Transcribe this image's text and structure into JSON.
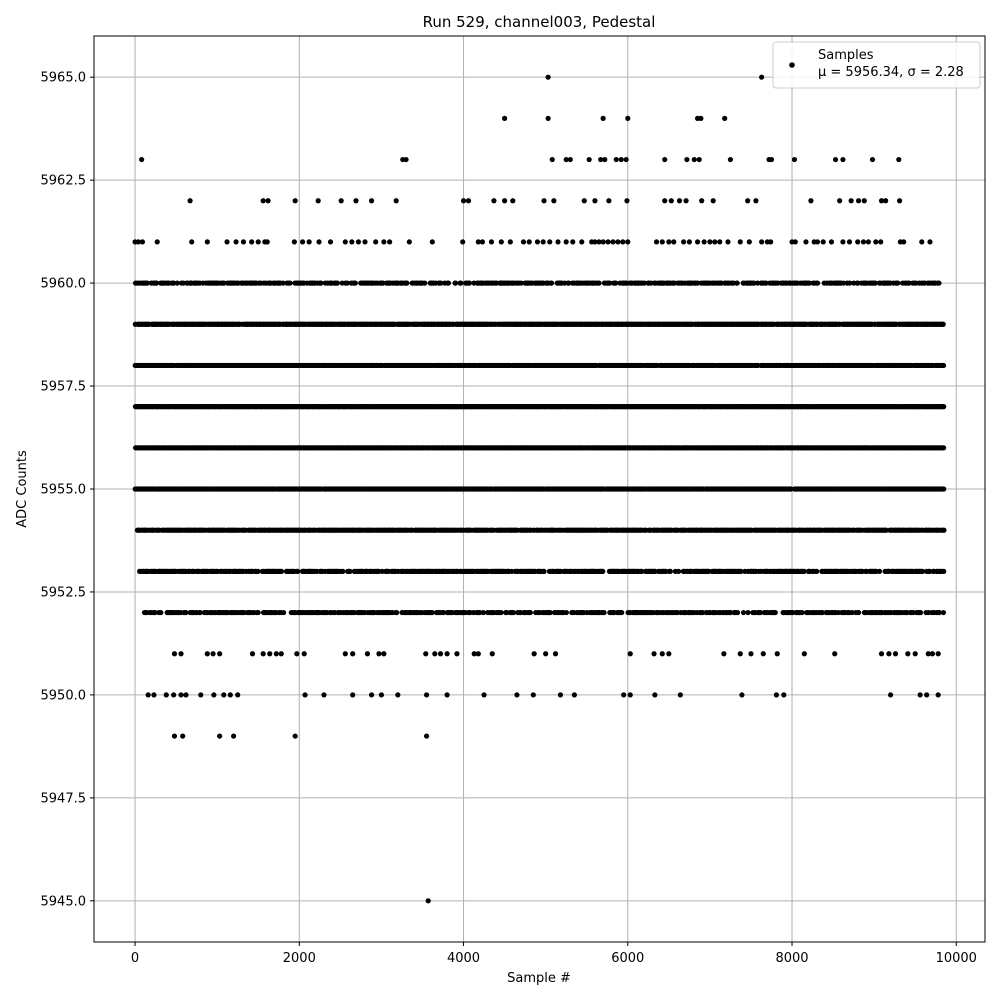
{
  "chart_data": {
    "type": "scatter",
    "title": "Run 529, channel003, Pedestal",
    "xlabel": "Sample #",
    "ylabel": "ADC Counts",
    "xlim": [
      -500,
      10350
    ],
    "ylim": [
      5944.0,
      5966.0
    ],
    "x_ticks": [
      0,
      2000,
      4000,
      6000,
      8000,
      10000
    ],
    "x_tick_labels": [
      "0",
      "2000",
      "4000",
      "6000",
      "8000",
      "10000"
    ],
    "y_ticks": [
      5945.0,
      5947.5,
      5950.0,
      5952.5,
      5955.0,
      5957.5,
      5960.0,
      5962.5,
      5965.0
    ],
    "y_tick_labels": [
      "5945.0",
      "5947.5",
      "5950.0",
      "5952.5",
      "5955.0",
      "5957.5",
      "5960.0",
      "5962.5",
      "5965.0"
    ],
    "grid": true,
    "marker_color": "#000000",
    "legend": {
      "position": "top-right",
      "label": "Samples",
      "stats": "μ = 5956.34, σ = 2.28"
    },
    "series": [
      {
        "name": "Samples",
        "points": [
          {
            "level": 5945,
            "x": [
              3570
            ]
          },
          {
            "level": 5949,
            "x": [
              480,
              580,
              1030,
              1200,
              1950,
              3550
            ]
          },
          {
            "level": 5950,
            "x": [
              160,
              230,
              380,
              470,
              560,
              620,
              800,
              960,
              1080,
              1160,
              1250,
              2070,
              2300,
              2650,
              2880,
              3000,
              3200,
              3550,
              3800,
              4250,
              4650,
              4850,
              5180,
              5350,
              5950,
              6030,
              6330,
              6640,
              7390,
              7810,
              7900,
              9200,
              9560,
              9640,
              9780
            ]
          },
          {
            "level": 5951,
            "x": [
              480,
              560,
              880,
              950,
              1030,
              1430,
              1560,
              1640,
              1720,
              1780,
              1970,
              2060,
              2560,
              2650,
              2830,
              2970,
              3030,
              3540,
              3650,
              3720,
              3800,
              3920,
              4130,
              4180,
              4350,
              4860,
              5000,
              5120,
              6030,
              6320,
              6420,
              6500,
              7170,
              7370,
              7500,
              7650,
              7820,
              8150,
              8520,
              9090,
              9180,
              9260,
              9410,
              9500,
              9660,
              9710,
              9780
            ]
          }
        ],
        "dense_levels": [
          {
            "level": 5952,
            "density": 0.62,
            "from": 100,
            "to": 9850
          },
          {
            "level": 5953,
            "density": 0.72,
            "from": 40,
            "to": 9850
          },
          {
            "level": 5954,
            "density": 0.92,
            "from": 20,
            "to": 9850
          },
          {
            "level": 5955,
            "density": 0.97,
            "from": 0,
            "to": 9850
          },
          {
            "level": 5956,
            "density": 1.0,
            "from": 0,
            "to": 9850
          },
          {
            "level": 5957,
            "density": 1.0,
            "from": 0,
            "to": 9850
          },
          {
            "level": 5958,
            "density": 0.97,
            "from": 0,
            "to": 9850
          },
          {
            "level": 5959,
            "density": 0.95,
            "from": 0,
            "to": 9850
          },
          {
            "level": 5960,
            "density": 0.6,
            "from": 0,
            "to": 9800
          }
        ],
        "sparse_upper": [
          {
            "level": 5961,
            "x": [
              0,
              40,
              90,
              270,
              690,
              880,
              1120,
              1230,
              1320,
              1420,
              1500,
              1580,
              1610,
              1940,
              2040,
              2120,
              2240,
              2380,
              2560,
              2640,
              2720,
              2800,
              2930,
              3030,
              3100,
              3340,
              3620,
              3990,
              4180,
              4230,
              4340,
              4460,
              4570,
              4730,
              4800,
              4900,
              4970,
              5050,
              5150,
              5250,
              5330,
              5440,
              5560,
              5600,
              5650,
              5700,
              5760,
              5820,
              5880,
              5940,
              6000,
              6350,
              6420,
              6500,
              6560,
              6680,
              6750,
              6850,
              6930,
              7000,
              7060,
              7120,
              7220,
              7370,
              7480,
              7630,
              7700,
              7740,
              8000,
              8040,
              8170,
              8270,
              8310,
              8380,
              8480,
              8620,
              8700,
              8800,
              8870,
              8930,
              9020,
              9080,
              9320,
              9360,
              9580,
              9680
            ]
          },
          {
            "level": 5962,
            "x": [
              670,
              1560,
              1620,
              1950,
              2230,
              2510,
              2690,
              2880,
              3180,
              4000,
              4060,
              4370,
              4500,
              4600,
              4980,
              5100,
              5470,
              5600,
              5770,
              5990,
              6450,
              6530,
              6630,
              6710,
              6900,
              7040,
              7460,
              7560,
              8230,
              8580,
              8720,
              8810,
              8880,
              9090,
              9140,
              9310
            ]
          },
          {
            "level": 5963,
            "x": [
              80,
              3260,
              3300,
              5080,
              5250,
              5300,
              5530,
              5670,
              5720,
              5860,
              5920,
              5980,
              6450,
              6720,
              6810,
              6870,
              7250,
              7720,
              7750,
              8030,
              8530,
              8620,
              8980,
              9300
            ]
          },
          {
            "level": 5964,
            "x": [
              4500,
              5030,
              5700,
              6000,
              6850,
              6890,
              7180
            ]
          },
          {
            "level": 5965,
            "x": [
              5030,
              7630
            ]
          }
        ]
      }
    ]
  }
}
